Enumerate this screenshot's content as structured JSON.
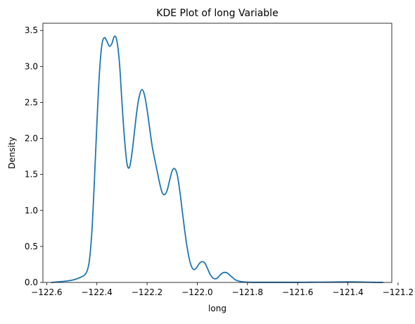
{
  "chart_data": {
    "type": "line",
    "title": "KDE Plot of long Variable",
    "xlabel": "long",
    "ylabel": "Density",
    "xlim": [
      -122.615,
      -121.225
    ],
    "ylim": [
      0,
      3.6
    ],
    "xticks": [
      {
        "value": -122.6,
        "label": "−122.6"
      },
      {
        "value": -122.4,
        "label": "−122.4"
      },
      {
        "value": -122.2,
        "label": "−122.2"
      },
      {
        "value": -122.0,
        "label": "−122.0"
      },
      {
        "value": -121.8,
        "label": "−121.8"
      },
      {
        "value": -121.6,
        "label": "−121.6"
      },
      {
        "value": -121.4,
        "label": "−121.4"
      },
      {
        "value": -121.2,
        "label": "−121.2"
      }
    ],
    "yticks": [
      {
        "value": 0.0,
        "label": "0.0"
      },
      {
        "value": 0.5,
        "label": "0.5"
      },
      {
        "value": 1.0,
        "label": "1.0"
      },
      {
        "value": 1.5,
        "label": "1.5"
      },
      {
        "value": 2.0,
        "label": "2.0"
      },
      {
        "value": 2.5,
        "label": "2.5"
      },
      {
        "value": 3.0,
        "label": "3.0"
      },
      {
        "value": 3.5,
        "label": "3.5"
      }
    ],
    "grid": false,
    "series": [
      {
        "color": "#1f77b4",
        "x": [
          -122.58,
          -122.55,
          -122.52,
          -122.5,
          -122.48,
          -122.46,
          -122.45,
          -122.44,
          -122.43,
          -122.42,
          -122.41,
          -122.4,
          -122.39,
          -122.38,
          -122.37,
          -122.36,
          -122.35,
          -122.34,
          -122.33,
          -122.32,
          -122.31,
          -122.3,
          -122.29,
          -122.28,
          -122.27,
          -122.26,
          -122.25,
          -122.24,
          -122.23,
          -122.22,
          -122.21,
          -122.2,
          -122.19,
          -122.18,
          -122.17,
          -122.16,
          -122.15,
          -122.14,
          -122.13,
          -122.12,
          -122.11,
          -122.1,
          -122.09,
          -122.08,
          -122.07,
          -122.06,
          -122.05,
          -122.04,
          -122.03,
          -122.02,
          -122.01,
          -122.0,
          -121.99,
          -121.98,
          -121.97,
          -121.96,
          -121.95,
          -121.94,
          -121.93,
          -121.92,
          -121.91,
          -121.9,
          -121.89,
          -121.88,
          -121.87,
          -121.86,
          -121.85,
          -121.84,
          -121.83,
          -121.82,
          -121.81,
          -121.8,
          -121.79,
          -121.78,
          -121.77,
          -121.76,
          -121.75,
          -121.74,
          -121.73,
          -121.72,
          -121.7,
          -121.68,
          -121.66,
          -121.64,
          -121.6,
          -121.55,
          -121.5,
          -121.45,
          -121.4,
          -121.35,
          -121.32,
          -121.3,
          -121.28,
          -121.26
        ],
        "y": [
          0.0,
          0.01,
          0.02,
          0.03,
          0.05,
          0.08,
          0.1,
          0.15,
          0.3,
          0.7,
          1.4,
          2.2,
          2.9,
          3.3,
          3.4,
          3.35,
          3.28,
          3.32,
          3.42,
          3.35,
          3.05,
          2.5,
          2.0,
          1.65,
          1.6,
          1.8,
          2.1,
          2.4,
          2.6,
          2.68,
          2.6,
          2.4,
          2.15,
          1.9,
          1.72,
          1.55,
          1.38,
          1.25,
          1.22,
          1.28,
          1.42,
          1.55,
          1.58,
          1.5,
          1.28,
          1.0,
          0.72,
          0.48,
          0.3,
          0.2,
          0.18,
          0.22,
          0.27,
          0.29,
          0.27,
          0.2,
          0.12,
          0.07,
          0.05,
          0.06,
          0.1,
          0.13,
          0.14,
          0.13,
          0.1,
          0.07,
          0.04,
          0.025,
          0.015,
          0.01,
          0.006,
          0.004,
          0.003,
          0.002,
          0.002,
          0.002,
          0.002,
          0.002,
          0.002,
          0.002,
          0.002,
          0.002,
          0.002,
          0.002,
          0.002,
          0.003,
          0.004,
          0.006,
          0.008,
          0.006,
          0.004,
          0.002,
          0.001,
          0.0
        ]
      }
    ]
  }
}
